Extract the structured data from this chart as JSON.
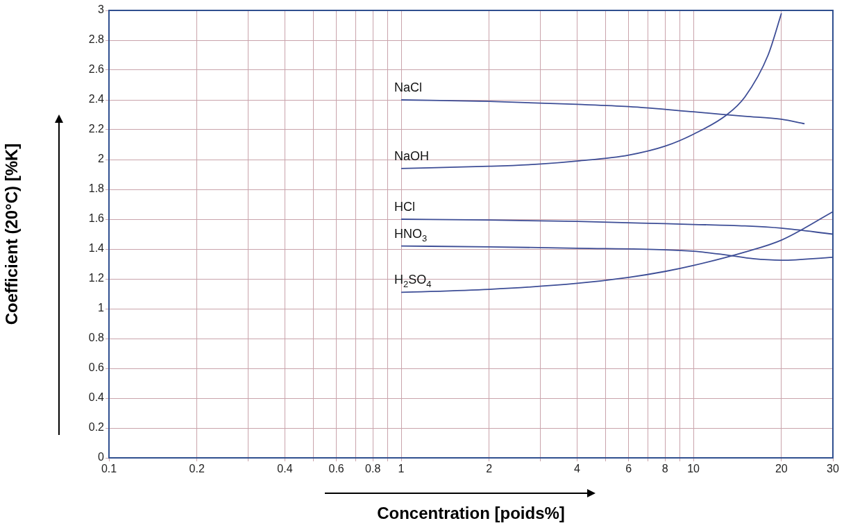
{
  "chart_data": {
    "type": "line",
    "xlabel": "Concentration [poids%]",
    "ylabel": "Coefficient (20°C) [%K]",
    "log": "x",
    "grid": true,
    "legend": false,
    "marker": "none",
    "line_style": "solid",
    "xlim": [
      0.1,
      30
    ],
    "ylim": [
      0,
      3
    ],
    "xticks": [
      0.1,
      0.2,
      {
        "value": 0.3,
        "label": null
      },
      0.4,
      {
        "value": 0.5,
        "label": null
      },
      0.6,
      {
        "value": 0.7,
        "label": null
      },
      0.8,
      {
        "value": 0.9,
        "label": null
      },
      1,
      2,
      {
        "value": 3,
        "label": null
      },
      4,
      {
        "value": 5,
        "label": null
      },
      6,
      {
        "value": 7,
        "label": null
      },
      8,
      {
        "value": 9,
        "label": null
      },
      10,
      20,
      30
    ],
    "yticks": [
      0,
      0.2,
      0.4,
      0.6,
      0.8,
      1,
      1.2,
      1.4,
      1.6,
      1.8,
      2,
      2.2,
      2.4,
      2.6,
      2.8,
      3
    ],
    "series": [
      {
        "name": "NaCl",
        "color": "#3d4d96",
        "x": [
          1,
          2,
          4,
          6,
          10,
          15,
          20,
          24
        ],
        "values": [
          2.4,
          2.39,
          2.37,
          2.355,
          2.32,
          2.29,
          2.27,
          2.24
        ]
      },
      {
        "name": "NaOH",
        "color": "#3d4d96",
        "x": [
          1,
          2,
          3,
          4,
          6,
          8,
          10,
          13,
          15,
          18,
          20
        ],
        "values": [
          1.94,
          1.955,
          1.97,
          1.99,
          2.03,
          2.09,
          2.17,
          2.3,
          2.42,
          2.7,
          2.98
        ]
      },
      {
        "name": "HCl",
        "color": "#3d4d96",
        "x": [
          1,
          2,
          4,
          8,
          10,
          15,
          20,
          30
        ],
        "values": [
          1.6,
          1.595,
          1.585,
          1.57,
          1.565,
          1.555,
          1.54,
          1.5
        ]
      },
      {
        "name": "HNO$_{3}$",
        "color": "#3d4d96",
        "x": [
          1,
          2,
          4,
          8,
          10,
          13,
          16,
          20,
          30
        ],
        "values": [
          1.42,
          1.415,
          1.405,
          1.395,
          1.385,
          1.36,
          1.335,
          1.325,
          1.345
        ]
      },
      {
        "name": "H$_{2}$SO$_{4}$",
        "color": "#3d4d96",
        "x": [
          1,
          2,
          4,
          6,
          8,
          10,
          15,
          20,
          30
        ],
        "values": [
          1.11,
          1.13,
          1.17,
          1.21,
          1.25,
          1.29,
          1.38,
          1.46,
          1.65
        ]
      }
    ]
  }
}
